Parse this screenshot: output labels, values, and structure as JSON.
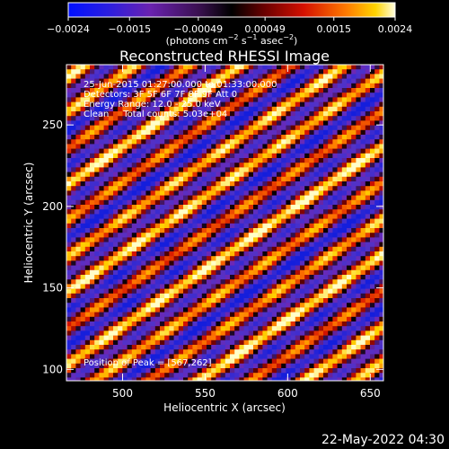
{
  "chart_data": {
    "type": "heatmap",
    "title": "Reconstructed RHESSI Image",
    "xlabel": "Heliocentric X (arcsec)",
    "ylabel": "Heliocentric Y (arcsec)",
    "xlim": [
      466,
      658
    ],
    "ylim": [
      93,
      287
    ],
    "x_ticks": [
      500,
      550,
      600,
      650
    ],
    "y_ticks": [
      100,
      150,
      200,
      250
    ],
    "colorbar": {
      "range": [
        -0.0024,
        0.0024
      ],
      "ticks": [
        -0.0024,
        -0.0015,
        -0.00049,
        0.00049,
        0.0015,
        0.0024
      ],
      "tick_labels": [
        "−0.0024",
        "−0.0015",
        "−0.00049",
        "0.00049",
        "0.0015",
        "0.0024"
      ],
      "label_parts": [
        "(photons cm",
        "−2",
        " s",
        "−1",
        " asec",
        "−2",
        ")"
      ]
    },
    "annotations": {
      "time_range": "25-Jun-2015 01:27:00.000 to 01:33:00.000",
      "detectors": "Detectors: 3F 5F 6F 7F 8F 9F  Att 0",
      "energy": "Energy Range: 12.0 - 25.0 keV",
      "clean": "Clean     Total counts: 5.03e+04",
      "peak": "Position of Peak = [567,262]"
    },
    "peak": [
      567,
      262
    ],
    "grid": false
  },
  "footer": {
    "date": "22-May-2022 04:30"
  }
}
